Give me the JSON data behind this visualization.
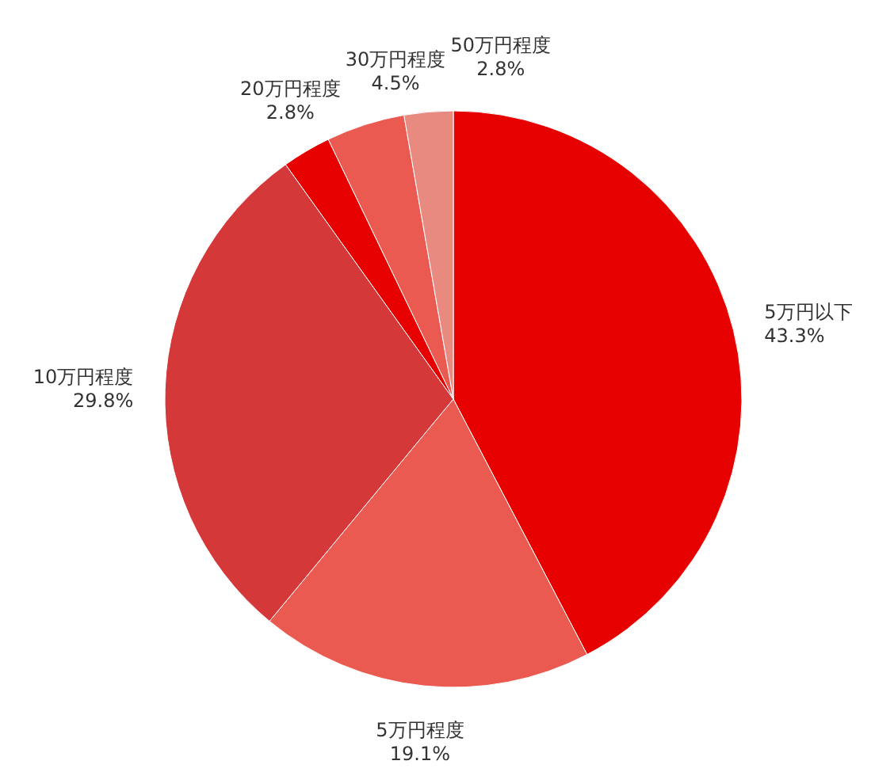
{
  "chart_data": {
    "type": "pie",
    "categories": [
      "5万円以下",
      "5万円程度",
      "10万円程度",
      "20万円程度",
      "30万円程度",
      "50万円程度"
    ],
    "values": [
      43.3,
      19.1,
      29.8,
      2.8,
      4.5,
      2.8
    ],
    "value_labels": [
      "43.3%",
      "19.1%",
      "29.8%",
      "2.8%",
      "4.5%",
      "2.8%"
    ],
    "colors": [
      "#e60000",
      "#ea5a50",
      "#d43838",
      "#e60000",
      "#ea5a50",
      "#e88a80"
    ]
  }
}
